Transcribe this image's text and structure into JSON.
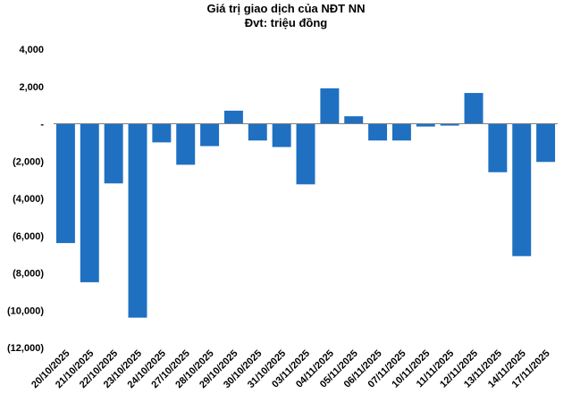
{
  "chart_data": {
    "type": "bar",
    "title": "Giá trị giao dịch của NĐT NN",
    "subtitle": "Đvt: triệu đồng",
    "xlabel": "",
    "ylabel": "",
    "ylim": [
      -12000,
      4000
    ],
    "yticks": [
      4000,
      2000,
      0,
      -2000,
      -4000,
      -6000,
      -8000,
      -10000,
      -12000
    ],
    "ytick_labels": [
      "4,000",
      "2,000",
      "-",
      "(2,000)",
      "(4,000)",
      "(6,000)",
      "(8,000)",
      "(10,000)",
      "(12,000)"
    ],
    "grid": false,
    "legend": "none",
    "bar_color": "#1F70C1",
    "categories": [
      "20/10/2025",
      "21/10/2025",
      "22/10/2025",
      "23/10/2025",
      "24/10/2025",
      "27/10/2025",
      "28/10/2025",
      "29/10/2025",
      "30/10/2025",
      "31/10/2025",
      "03/11/2025",
      "04/11/2025",
      "05/11/2025",
      "06/11/2025",
      "07/11/2025",
      "10/11/2025",
      "11/11/2025",
      "12/11/2025",
      "13/11/2025",
      "14/11/2025",
      "17/11/2025"
    ],
    "values": [
      -6400,
      -8500,
      -3200,
      -10400,
      -1000,
      -2200,
      -1200,
      700,
      -900,
      -1250,
      -3250,
      1900,
      400,
      -900,
      -900,
      -150,
      -100,
      1650,
      -2600,
      -7100,
      -2050
    ]
  }
}
